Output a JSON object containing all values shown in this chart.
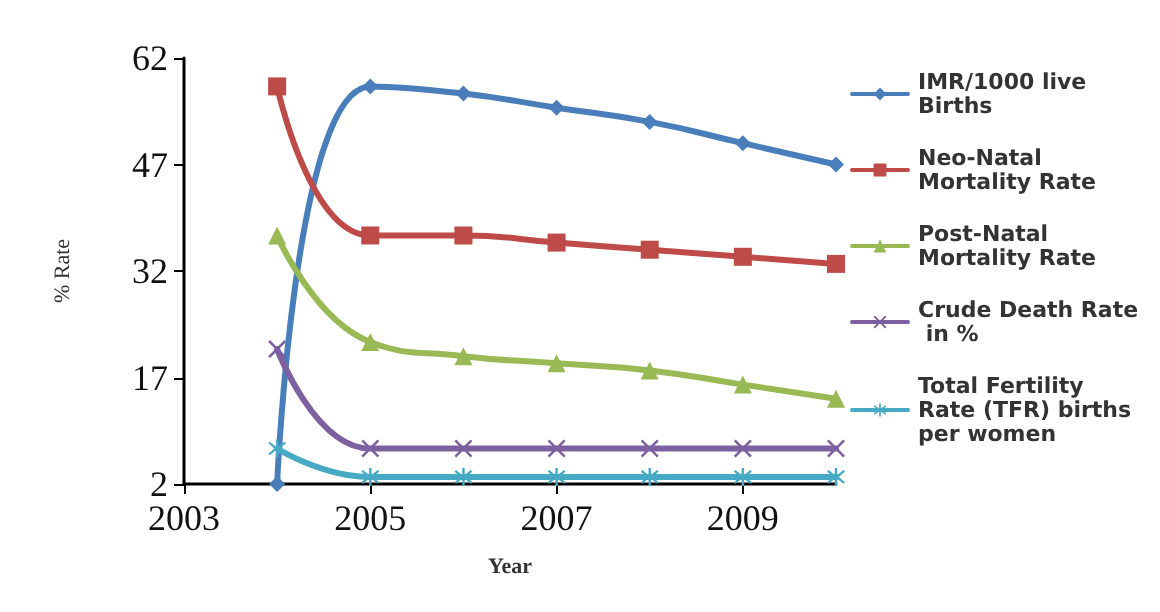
{
  "chart_data": {
    "type": "line",
    "xlabel": "Year",
    "ylabel": "% Rate",
    "x": [
      2004,
      2005,
      2006,
      2007,
      2008,
      2009,
      2010
    ],
    "xlim": [
      2003,
      2010
    ],
    "xticks": [
      2003,
      2005,
      2007,
      2009
    ],
    "ylim": [
      2,
      62
    ],
    "yticks": [
      2,
      17,
      32,
      47,
      62
    ],
    "grid": false,
    "legend": "right",
    "line_style": "solid",
    "series": [
      {
        "name": "IMR/1000 live Births",
        "color": "#4a7ebb",
        "marker": "diamond",
        "values": [
          2,
          58,
          57,
          55,
          53,
          50,
          47
        ]
      },
      {
        "name": "Neo-Natal Mortality Rate",
        "color": "#be4b48",
        "marker": "square",
        "values": [
          58,
          37,
          37,
          36,
          35,
          34,
          33
        ]
      },
      {
        "name": "Post-Natal Mortality Rate",
        "color": "#98b954",
        "marker": "triangle",
        "values": [
          37,
          22,
          20,
          19,
          18,
          16,
          14
        ]
      },
      {
        "name": "Crude Death Rate in %",
        "color": "#7d60a0",
        "marker": "cross",
        "values": [
          21,
          7,
          7,
          7,
          7,
          7,
          7
        ]
      },
      {
        "name": "Total Fertility Rate (TFR) births per women",
        "color": "#46aac5",
        "marker": "star",
        "values": [
          7,
          3,
          3,
          3,
          3,
          3,
          3
        ]
      }
    ]
  }
}
